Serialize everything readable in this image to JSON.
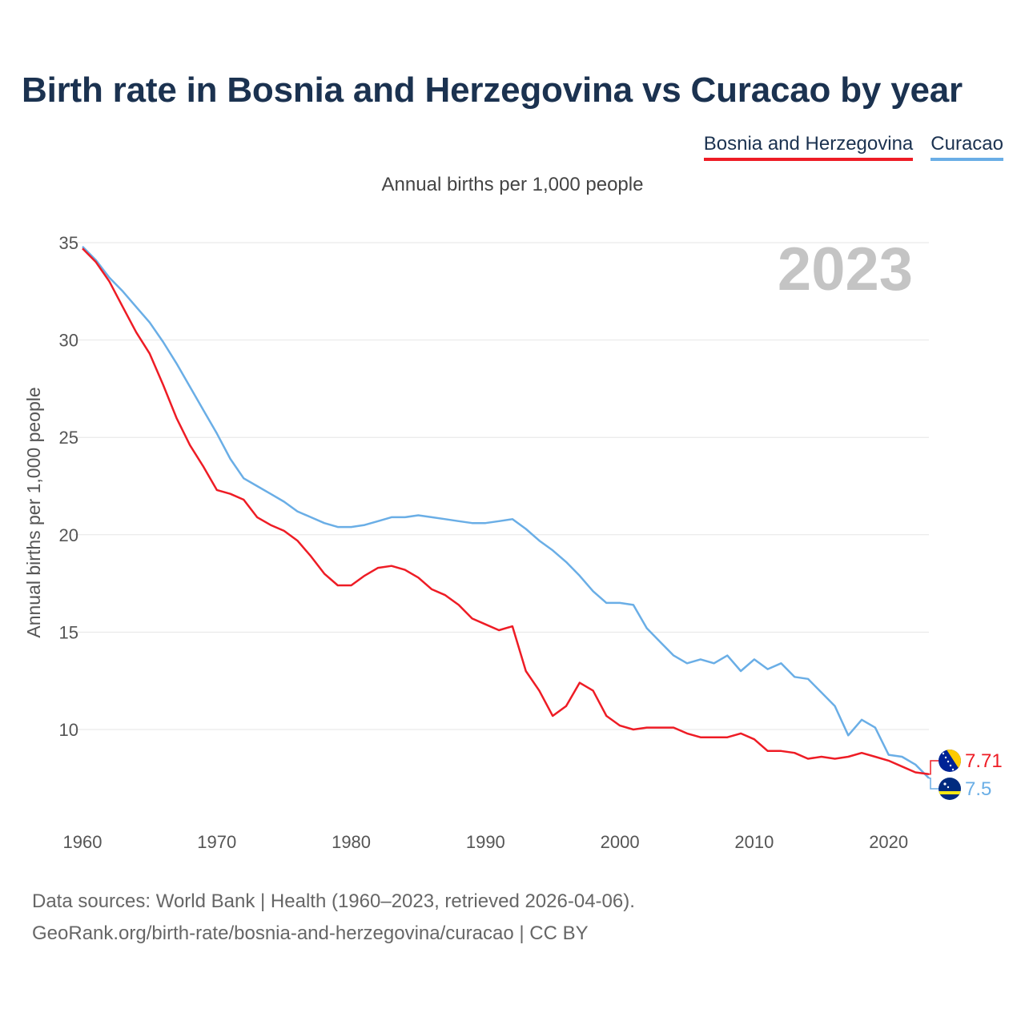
{
  "chart_data": {
    "type": "line",
    "title": "Birth rate in Bosnia and Herzegovina vs Curacao by year",
    "subtitle": "Annual births per 1,000 people",
    "ylabel": "Annual births per 1,000 people",
    "xlabel": "",
    "year_mark": "2023",
    "xlim": [
      1960,
      2023
    ],
    "ylim": [
      6,
      35
    ],
    "x_ticks": [
      1960,
      1970,
      1980,
      1990,
      2000,
      2010,
      2020
    ],
    "y_ticks": [
      10,
      15,
      20,
      25,
      30,
      35
    ],
    "legend_position": "top-right",
    "x": [
      1960,
      1961,
      1962,
      1963,
      1964,
      1965,
      1966,
      1967,
      1968,
      1969,
      1970,
      1971,
      1972,
      1973,
      1974,
      1975,
      1976,
      1977,
      1978,
      1979,
      1980,
      1981,
      1982,
      1983,
      1984,
      1985,
      1986,
      1987,
      1988,
      1989,
      1990,
      1991,
      1992,
      1993,
      1994,
      1995,
      1996,
      1997,
      1998,
      1999,
      2000,
      2001,
      2002,
      2003,
      2004,
      2005,
      2006,
      2007,
      2008,
      2009,
      2010,
      2011,
      2012,
      2013,
      2014,
      2015,
      2016,
      2017,
      2018,
      2019,
      2020,
      2021,
      2022,
      2023
    ],
    "series": [
      {
        "name": "Bosnia and Herzegovina",
        "color": "#ee1c25",
        "end_label": "7.71",
        "flag": "bosnia-and-herzegovina-flag-icon",
        "values": [
          34.7,
          34.0,
          33.0,
          31.7,
          30.4,
          29.3,
          27.7,
          26.0,
          24.6,
          23.5,
          22.3,
          22.1,
          21.8,
          20.9,
          20.5,
          20.2,
          19.7,
          18.9,
          18.0,
          17.4,
          17.4,
          17.9,
          18.3,
          18.4,
          18.2,
          17.8,
          17.2,
          16.9,
          16.4,
          15.7,
          15.4,
          15.1,
          15.3,
          13.0,
          12.0,
          10.7,
          11.2,
          12.4,
          12.0,
          10.7,
          10.2,
          10.0,
          10.1,
          10.1,
          10.1,
          9.8,
          9.6,
          9.6,
          9.6,
          9.8,
          9.5,
          8.9,
          8.9,
          8.8,
          8.5,
          8.6,
          8.5,
          8.6,
          8.8,
          8.6,
          8.4,
          8.1,
          7.8,
          7.71
        ]
      },
      {
        "name": "Curacao",
        "color": "#6aaee6",
        "end_label": "7.5",
        "flag": "curacao-flag-icon",
        "values": [
          34.8,
          34.1,
          33.2,
          32.5,
          31.7,
          30.9,
          29.9,
          28.8,
          27.6,
          26.4,
          25.2,
          23.9,
          22.9,
          22.5,
          22.1,
          21.7,
          21.2,
          20.9,
          20.6,
          20.4,
          20.4,
          20.5,
          20.7,
          20.9,
          20.9,
          21.0,
          20.9,
          20.8,
          20.7,
          20.6,
          20.6,
          20.7,
          20.8,
          20.3,
          19.7,
          19.2,
          18.6,
          17.9,
          17.1,
          16.5,
          16.5,
          16.4,
          15.2,
          14.5,
          13.8,
          13.4,
          13.6,
          13.4,
          13.8,
          13.0,
          13.6,
          13.1,
          13.4,
          12.7,
          12.6,
          11.9,
          11.2,
          9.7,
          10.5,
          10.1,
          8.7,
          8.6,
          8.2,
          7.5
        ]
      }
    ]
  },
  "footer": {
    "line1": "Data sources: World Bank | Health (1960–2023, retrieved 2026-04-06).",
    "line2": "GeoRank.org/birth-rate/bosnia-and-herzegovina/curacao | CC BY"
  }
}
